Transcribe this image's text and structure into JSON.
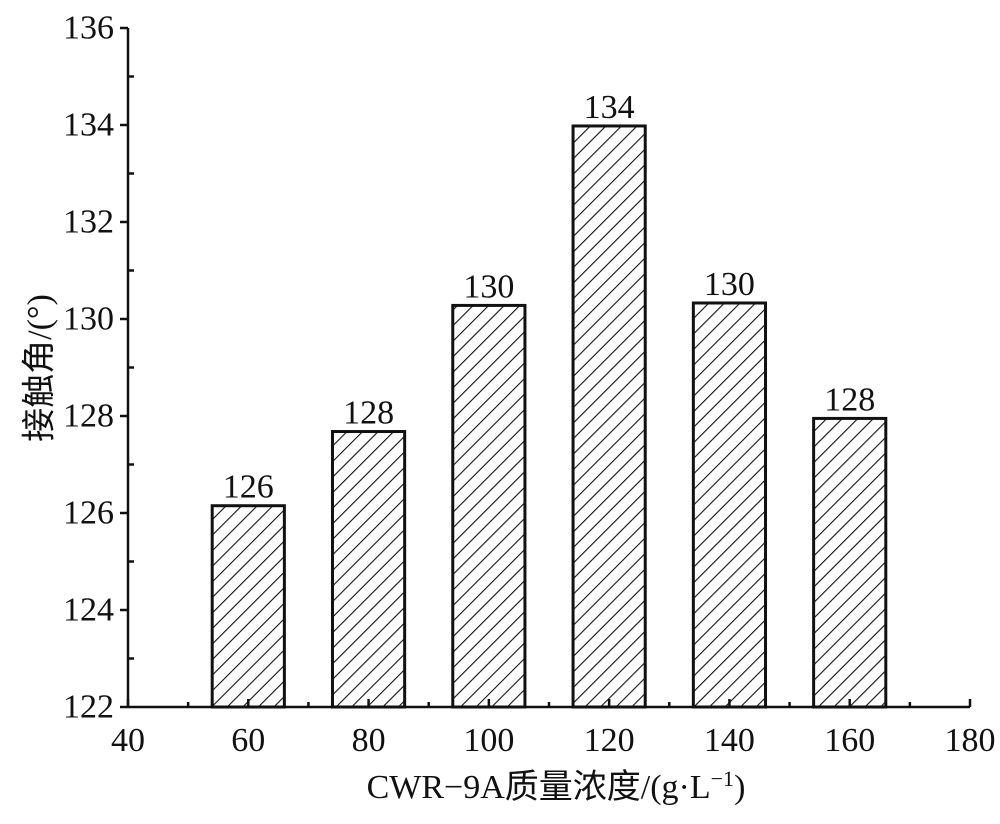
{
  "chart_data": {
    "type": "bar",
    "x": [
      60,
      80,
      100,
      120,
      140,
      160
    ],
    "values": [
      126.15,
      127.68,
      130.28,
      133.98,
      130.33,
      127.95
    ],
    "data_labels": [
      "126",
      "128",
      "130",
      "134",
      "130",
      "128"
    ],
    "xlabel": "CWR−9A质量浓度/(g·L",
    "xlabel_superscript": "−1",
    "xlabel_suffix": ")",
    "ylabel": "接触角/(°)",
    "xlim": [
      40,
      180
    ],
    "ylim": [
      122,
      136
    ],
    "x_ticks": [
      40,
      60,
      80,
      100,
      120,
      140,
      160,
      180
    ],
    "y_ticks": [
      122,
      124,
      126,
      128,
      130,
      132,
      134,
      136
    ],
    "bar_width_units": 12,
    "grid": false,
    "bar_pattern": "diagonal-hatch",
    "bar_color": "#111111",
    "background": "#ffffff"
  }
}
